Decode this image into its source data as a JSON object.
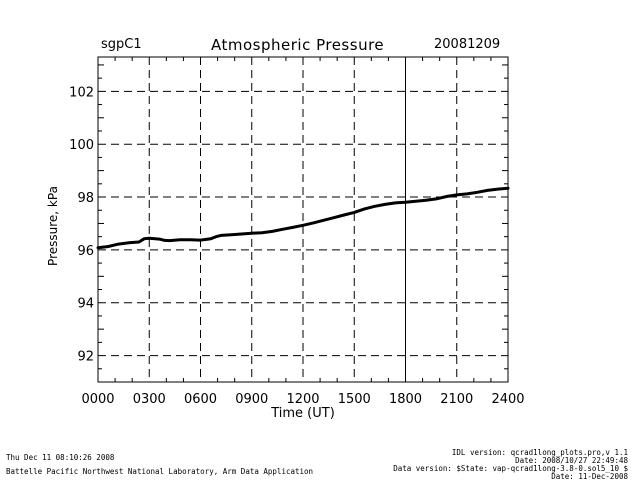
{
  "header": {
    "site": "sgpC1",
    "title": "Atmospheric Pressure",
    "date": "20081209"
  },
  "footer": {
    "left_line1": "Thu Dec 11 08:10:26 2008",
    "left_line2": "Battelle Pacific Northwest National Laboratory, Arm Data Application",
    "right_line1": "IDL version: qcrad1long_plots.pro,v 1.1",
    "right_line2": "Date: 2008/10/27 22:49:48",
    "right_line3": "Data version: $State: vap-qcrad1long-3.8-0.sol5_10 $",
    "right_line4": "Date: 11-Dec-2008"
  },
  "chart_data": {
    "type": "line",
    "xlabel": "Time (UT)",
    "ylabel": "Pressure, kPa",
    "xlim": [
      0,
      2400
    ],
    "ylim": [
      91,
      103.3
    ],
    "x_ticks": [
      "0000",
      "0300",
      "0600",
      "0900",
      "1200",
      "1500",
      "1800",
      "2100",
      "2400"
    ],
    "y_ticks": [
      "92",
      "94",
      "96",
      "98",
      "100",
      "102"
    ],
    "grid": true,
    "series": [
      {
        "x": [
          0,
          60,
          120,
          180,
          240,
          270,
          300,
          360,
          390,
          420,
          480,
          540,
          600,
          660,
          690,
          720,
          780,
          840,
          900,
          960,
          1020,
          1080,
          1140,
          1200,
          1260,
          1320,
          1380,
          1440,
          1500,
          1560,
          1620,
          1680,
          1740,
          1800,
          1860,
          1920,
          1980,
          2040,
          2100,
          2160,
          2220,
          2280,
          2340,
          2400
        ],
        "values": [
          96.08,
          96.13,
          96.22,
          96.27,
          96.3,
          96.42,
          96.44,
          96.41,
          96.36,
          96.35,
          96.38,
          96.38,
          96.37,
          96.42,
          96.5,
          96.55,
          96.57,
          96.6,
          96.63,
          96.65,
          96.7,
          96.78,
          96.85,
          96.93,
          97.02,
          97.12,
          97.22,
          97.32,
          97.42,
          97.55,
          97.65,
          97.72,
          97.78,
          97.8,
          97.84,
          97.88,
          97.93,
          98.02,
          98.08,
          98.12,
          98.18,
          98.25,
          98.3,
          98.33
        ]
      }
    ]
  }
}
